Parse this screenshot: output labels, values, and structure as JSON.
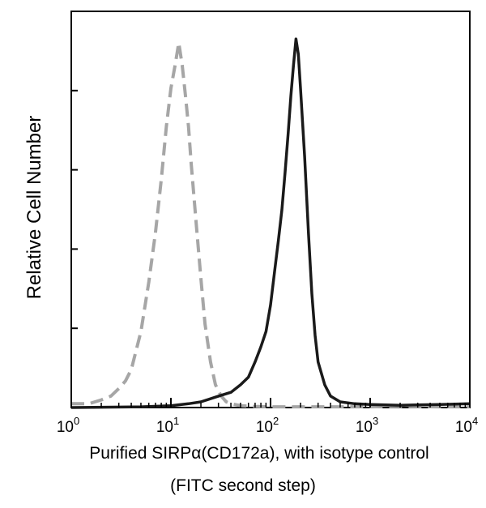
{
  "chart_data": {
    "type": "line",
    "title": "",
    "xlabel": "Purified SIRPα(CD172a), with isotype control",
    "xlabel_line2": "(FITC second step)",
    "ylabel": "Relative Cell Number",
    "x_scale": "log",
    "xlim": [
      1,
      10000
    ],
    "ylim": [
      0,
      1
    ],
    "x_ticks": [
      {
        "value": 1,
        "base": "10",
        "exp": "0"
      },
      {
        "value": 10,
        "base": "10",
        "exp": "1"
      },
      {
        "value": 100,
        "base": "10",
        "exp": "2"
      },
      {
        "value": 1000,
        "base": "10",
        "exp": "3"
      },
      {
        "value": 10000,
        "base": "10",
        "exp": "4"
      }
    ],
    "y_tick_count": 5,
    "grid": false,
    "legend": "none",
    "series": [
      {
        "style": "dashed",
        "color": "#a6a6a6",
        "x": [
          1,
          1.5,
          2,
          2.5,
          3,
          3.5,
          4,
          5,
          6,
          7,
          8,
          9,
          10,
          11,
          12,
          13,
          14,
          15,
          16,
          18,
          20,
          22,
          25,
          28,
          32,
          36,
          40,
          50,
          70,
          100,
          200,
          500,
          1000,
          2000,
          5000,
          10000
        ],
        "y": [
          0.01,
          0.01,
          0.02,
          0.03,
          0.05,
          0.07,
          0.1,
          0.2,
          0.33,
          0.46,
          0.6,
          0.74,
          0.84,
          0.9,
          0.96,
          0.9,
          0.82,
          0.74,
          0.64,
          0.48,
          0.34,
          0.22,
          0.12,
          0.06,
          0.03,
          0.015,
          0.01,
          0.005,
          0.003,
          0.002,
          0.002,
          0.002,
          0.002,
          0.003,
          0.002,
          0.002
        ]
      },
      {
        "style": "solid",
        "color": "#1a1a1a",
        "x": [
          1,
          5,
          10,
          15,
          20,
          30,
          40,
          50,
          60,
          70,
          80,
          90,
          100,
          110,
          120,
          130,
          140,
          150,
          160,
          170,
          180,
          190,
          200,
          220,
          240,
          260,
          280,
          300,
          350,
          400,
          500,
          700,
          1000,
          2000,
          5000,
          10000
        ],
        "y": [
          0,
          0.002,
          0.005,
          0.01,
          0.015,
          0.03,
          0.04,
          0.06,
          0.08,
          0.12,
          0.16,
          0.2,
          0.27,
          0.36,
          0.44,
          0.52,
          0.62,
          0.72,
          0.82,
          0.9,
          0.97,
          0.93,
          0.84,
          0.66,
          0.46,
          0.3,
          0.19,
          0.12,
          0.06,
          0.03,
          0.015,
          0.01,
          0.008,
          0.006,
          0.008,
          0.01
        ]
      }
    ]
  }
}
